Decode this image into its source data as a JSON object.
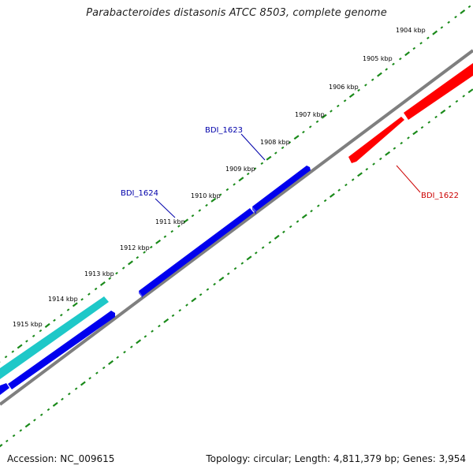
{
  "title": "Parabacteroides distasonis ATCC 8503, complete genome",
  "footer": {
    "accession": "Accession: NC_009615",
    "summary": "Topology: circular; Length: 4,811,379 bp; Genes: 3,954"
  },
  "colors": {
    "backbone": "#7f7f7f",
    "tick": "#1a8a1a",
    "forward_gene": "#0000ee",
    "reverse_gene": "#ff0000",
    "highlight_gene": "#1ec8c8",
    "forward_label": "#0000aa",
    "reverse_label": "#cc0000"
  },
  "kbp_labels": [
    "1904 kbp",
    "1905 kbp",
    "1906 kbp",
    "1907 kbp",
    "1908 kbp",
    "1909 kbp",
    "1910 kbp",
    "1911 kbp",
    "1912 kbp",
    "1913 kbp",
    "1914 kbp",
    "1915 kbp"
  ],
  "gene_labels": {
    "bdi_1622": "BDI_1622",
    "bdi_1623": "BDI_1623",
    "bdi_1624": "BDI_1624"
  }
}
